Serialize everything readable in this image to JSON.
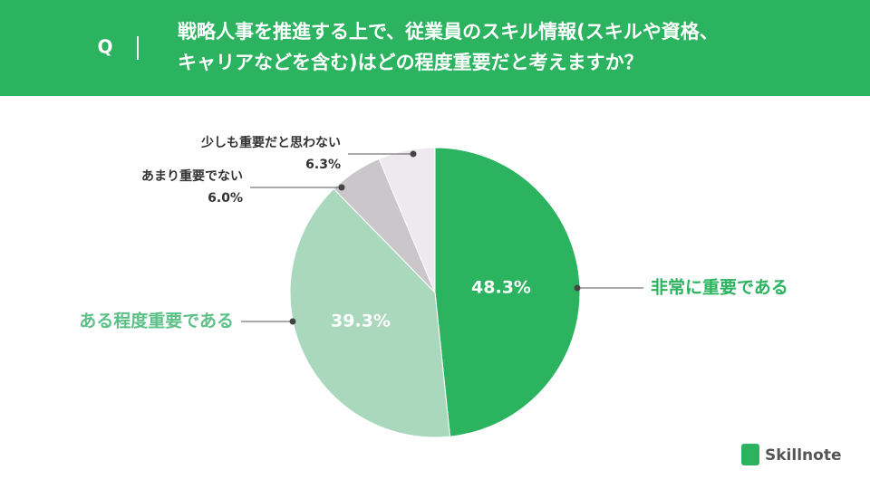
{
  "header": {
    "q": "Q",
    "title_lines": [
      "戦略人事を推進する上で、従業員のスキル情報(スキルや資格、",
      "キャリアなどを含む)はどの程度重要だと考えますか？"
    ]
  },
  "chart_data": {
    "type": "pie",
    "categories": [
      "非常に重要である",
      "ある程度重要である",
      "あまり重要でない",
      "少しも重要だと思わない"
    ],
    "values": [
      48.3,
      39.3,
      6.0,
      6.3
    ],
    "value_labels": [
      "48.3%",
      "39.3%",
      "6.0%",
      "6.3%"
    ],
    "colors": [
      "#2bb35f",
      "#a9d8bd",
      "#cac6ca",
      "#ede9ee"
    ]
  },
  "brand": "Skillnote"
}
